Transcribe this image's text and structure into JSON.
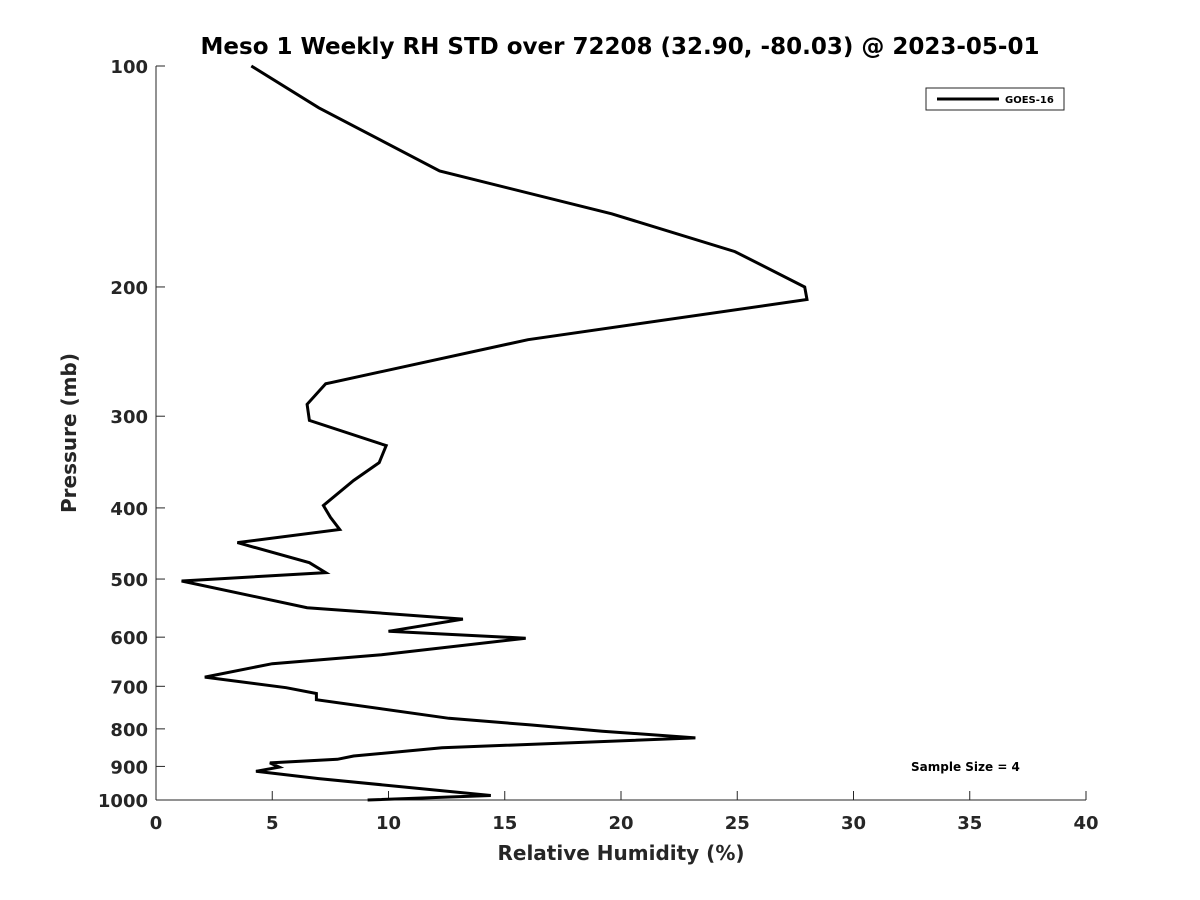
{
  "chart_data": {
    "type": "line",
    "title": "Meso 1 Weekly RH STD over 72208 (32.90, -80.03) @ 2023-05-01",
    "xlabel": "Relative Humidity (%)",
    "ylabel": "Pressure (mb)",
    "xlim": [
      0,
      40
    ],
    "ylim": [
      100,
      1000
    ],
    "y_scale": "log",
    "y_reversed": true,
    "grid": false,
    "xticks": [
      0,
      5,
      10,
      15,
      20,
      25,
      30,
      35,
      40
    ],
    "yticks": [
      100,
      200,
      300,
      400,
      500,
      600,
      700,
      800,
      900,
      1000
    ],
    "legend": {
      "location": "top-right",
      "entries": [
        "GOES-16"
      ]
    },
    "annotation": "Sample Size = 4",
    "series": [
      {
        "name": "GOES-16",
        "color": "#000000",
        "x": [
          4.1,
          7.0,
          12.2,
          19.6,
          24.9,
          27.9,
          28.0,
          16.0,
          7.3,
          6.5,
          6.6,
          9.9,
          9.6,
          8.5,
          7.2,
          7.5,
          7.9,
          3.5,
          6.6,
          7.3,
          1.1,
          6.5,
          13.2,
          10.0,
          15.9,
          9.7,
          5.0,
          2.1,
          5.6,
          6.9,
          6.9,
          12.6,
          16.1,
          19.2,
          23.2,
          12.3,
          8.5,
          7.8,
          4.9,
          5.3,
          4.3,
          7.0,
          14.4,
          9.1
        ],
        "y": [
          100,
          114,
          139,
          159,
          179,
          200,
          208,
          236,
          271,
          289,
          304,
          329,
          347,
          367,
          397,
          412,
          428,
          446,
          475,
          490,
          503,
          547,
          567,
          589,
          602,
          634,
          652,
          680,
          703,
          716,
          730,
          774,
          790,
          806,
          823,
          849,
          871,
          880,
          890,
          902,
          914,
          935,
          986,
          1000
        ]
      }
    ]
  }
}
